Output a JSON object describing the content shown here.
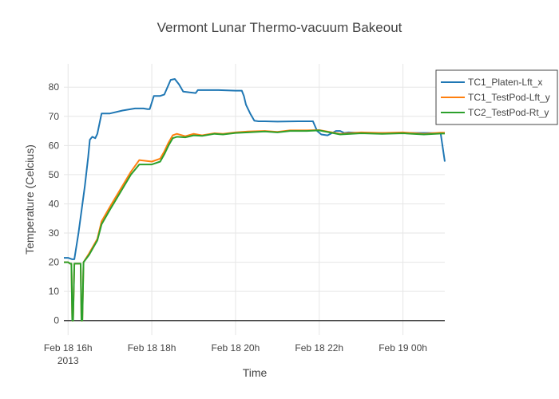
{
  "chart_data": {
    "type": "line",
    "title": "Vermont Lunar Thermo-vacuum Bakeout",
    "xlabel": "Time",
    "ylabel": "Temperature (Celcius)",
    "x_unit": "hours",
    "xlim": [
      15.9,
      25.0
    ],
    "ylim": [
      -5,
      88
    ],
    "grid": true,
    "legend_position": "top-right",
    "x_ticks": [
      {
        "value": 16,
        "label": "Feb 18 16h",
        "sublabel": "2013"
      },
      {
        "value": 18,
        "label": "Feb 18 18h",
        "sublabel": ""
      },
      {
        "value": 20,
        "label": "Feb 18 20h",
        "sublabel": ""
      },
      {
        "value": 22,
        "label": "Feb 18 22h",
        "sublabel": ""
      },
      {
        "value": 24,
        "label": "Feb 19 00h",
        "sublabel": ""
      }
    ],
    "y_ticks": [
      {
        "value": 0,
        "label": "0"
      },
      {
        "value": 10,
        "label": "10"
      },
      {
        "value": 20,
        "label": "20"
      },
      {
        "value": 30,
        "label": "30"
      },
      {
        "value": 40,
        "label": "40"
      },
      {
        "value": 50,
        "label": "50"
      },
      {
        "value": 60,
        "label": "60"
      },
      {
        "value": 70,
        "label": "70"
      },
      {
        "value": 80,
        "label": "80"
      }
    ],
    "series": [
      {
        "name": "TC1_Platen-Lft_x",
        "color": "#1f77b4",
        "x": [
          15.9,
          16.0,
          16.1,
          16.15,
          16.25,
          16.4,
          16.48,
          16.52,
          16.58,
          16.65,
          16.7,
          16.8,
          17.0,
          17.3,
          17.6,
          17.8,
          17.9,
          17.95,
          18.05,
          18.2,
          18.3,
          18.45,
          18.55,
          18.65,
          18.75,
          18.9,
          19.05,
          19.1,
          19.3,
          19.6,
          20.0,
          20.15,
          20.2,
          20.25,
          20.35,
          20.45,
          20.55,
          20.7,
          21.0,
          21.5,
          21.85,
          21.95,
          22.05,
          22.2,
          22.4,
          22.5,
          22.6,
          22.7,
          23.0,
          23.5,
          24.0,
          24.6,
          24.9,
          25.0
        ],
        "y": [
          21.5,
          21.5,
          21.0,
          21.0,
          30.0,
          46.0,
          56.0,
          62.0,
          63.0,
          62.5,
          64.0,
          71.0,
          71.0,
          72.0,
          72.7,
          72.7,
          72.5,
          72.5,
          77.0,
          77.0,
          77.5,
          82.5,
          82.8,
          81.0,
          78.5,
          78.2,
          78.0,
          79.0,
          79.0,
          79.0,
          78.8,
          78.8,
          77.0,
          74.0,
          71.0,
          68.5,
          68.3,
          68.3,
          68.2,
          68.3,
          68.3,
          65.0,
          63.8,
          63.5,
          65.0,
          65.0,
          64.3,
          64.5,
          64.3,
          64.3,
          64.3,
          64.3,
          64.2,
          54.5
        ]
      },
      {
        "name": "TC1_TestPod-Lft_y",
        "color": "#ff7f0e",
        "x": [
          15.9,
          16.0,
          16.05,
          16.08,
          16.1,
          16.12,
          16.15,
          16.3,
          16.32,
          16.34,
          16.37,
          16.5,
          16.7,
          16.8,
          17.0,
          17.5,
          17.7,
          18.0,
          18.2,
          18.3,
          18.4,
          18.5,
          18.6,
          18.8,
          19.0,
          19.2,
          19.5,
          19.7,
          20.0,
          20.3,
          20.7,
          21.0,
          21.3,
          21.7,
          22.0,
          22.5,
          23.0,
          23.5,
          24.0,
          24.5,
          24.9,
          25.0
        ],
        "y": [
          20.0,
          20.0,
          19.5,
          19.5,
          0.0,
          0.0,
          19.5,
          19.5,
          0.0,
          0.0,
          20.0,
          23.0,
          28.0,
          34.0,
          39.0,
          51.0,
          55.0,
          54.5,
          55.5,
          58.0,
          61.0,
          63.5,
          64.0,
          63.2,
          64.0,
          63.5,
          64.2,
          64.0,
          64.5,
          64.8,
          65.0,
          64.7,
          65.2,
          65.2,
          65.3,
          64.0,
          64.5,
          64.3,
          64.5,
          64.0,
          64.4,
          64.4
        ]
      },
      {
        "name": "TC2_TestPod-Rt_y",
        "color": "#2ca02c",
        "x": [
          15.9,
          16.0,
          16.05,
          16.08,
          16.1,
          16.12,
          16.15,
          16.3,
          16.32,
          16.34,
          16.37,
          16.5,
          16.7,
          16.8,
          17.0,
          17.5,
          17.7,
          18.0,
          18.2,
          18.3,
          18.4,
          18.5,
          18.6,
          18.8,
          19.0,
          19.2,
          19.5,
          19.7,
          20.0,
          20.3,
          20.7,
          21.0,
          21.3,
          21.7,
          22.0,
          22.5,
          23.0,
          23.5,
          24.0,
          24.5,
          24.9,
          25.0
        ],
        "y": [
          20.0,
          20.0,
          19.5,
          19.5,
          0.0,
          0.0,
          19.5,
          19.5,
          0.0,
          0.0,
          20.0,
          22.5,
          27.5,
          33.0,
          38.0,
          50.0,
          53.5,
          53.5,
          54.5,
          57.0,
          60.0,
          62.5,
          63.0,
          62.8,
          63.5,
          63.3,
          64.0,
          63.8,
          64.3,
          64.5,
          64.8,
          64.5,
          65.0,
          65.0,
          65.2,
          63.8,
          64.2,
          64.0,
          64.2,
          63.8,
          64.1,
          64.1
        ]
      }
    ]
  }
}
